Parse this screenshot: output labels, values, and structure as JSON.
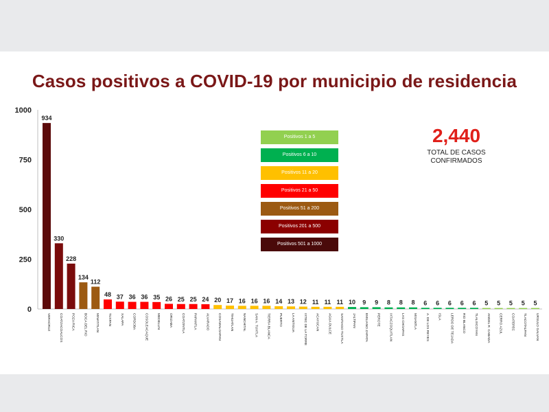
{
  "page": {
    "title": "Casos positivos a COVID-19  por municipio de residencia"
  },
  "total": {
    "value": "2,440",
    "label_line1": "TOTAL DE CASOS",
    "label_line2": "CONFIRMADOS"
  },
  "legend": [
    {
      "label": "Positivos 1 a 5",
      "color": "#92d050"
    },
    {
      "label": "Positivos 6 a 10",
      "color": "#00b050"
    },
    {
      "label": "Positivos 11 a 20",
      "color": "#ffc000"
    },
    {
      "label": "Positivos 21 a 50",
      "color": "#ff0000"
    },
    {
      "label": "Positivos 51 a 200",
      "color": "#9c5a12"
    },
    {
      "label": "Positivos 201 a 500",
      "color": "#8b0000"
    },
    {
      "label": "Positivos 501 a 1000",
      "color": "#4a0a0a"
    }
  ],
  "chart_data": {
    "type": "bar",
    "title": "Casos positivos a COVID-19  por municipio de residencia",
    "xlabel": "",
    "ylabel": "",
    "ylim": [
      0,
      1000
    ],
    "yticks": [
      0,
      250,
      500,
      750,
      1000
    ],
    "grid": false,
    "legend_position": "top-center",
    "categories": [
      "VERACRUZ",
      "COATZACOALCOS",
      "POZA RICA",
      "BOCA DEL RIO",
      "MINATITLAN",
      "TUXPAN",
      "XALAPA",
      "CORDOBA",
      "COSOLEACAQUE",
      "MEDELLIN",
      "ORIZABA",
      "COATZINTLA",
      "PAPANTLA",
      "ALVARADO",
      "COSAMALOAPAN",
      "TIHUATLAN",
      "NANCHITAL",
      "SAN A. TUXTLA",
      "TIERRA BLANCA",
      "PUERTO",
      "LA ANTIGUA",
      "IXTEC DE LA TORRE",
      "ACAYUCAN",
      "AGUA DULCE",
      "SANTIAGO TUXTLA",
      "JALTIPAN",
      "EMILIANO ZAPATA",
      "PEROTE",
      "IXTACZOQUITLAN",
      "LAS CHOAPAS",
      "MISANTLA",
      "A. DE LOS REYES",
      "ISLA",
      "LERDO DE TEJADA",
      "RIO BLANCO",
      "TLALIXCOYAN",
      "ANGEL R. CABADA",
      "CERRO AZUL",
      "COATEPEC",
      "TLACOTALPAN",
      "URSULO GALVAN"
    ],
    "values": [
      934,
      330,
      228,
      134,
      112,
      48,
      37,
      36,
      36,
      35,
      26,
      25,
      25,
      24,
      20,
      17,
      16,
      16,
      16,
      14,
      13,
      12,
      11,
      11,
      11,
      10,
      9,
      9,
      8,
      8,
      8,
      6,
      6,
      6,
      6,
      6,
      5,
      5,
      5,
      5,
      5
    ],
    "value_labels": [
      "934",
      "330",
      "228",
      "134",
      "112",
      "48",
      "37",
      "36",
      "36",
      "35",
      "26",
      "25",
      "25",
      "24",
      "20",
      "17",
      "16",
      "16",
      "16",
      "14",
      "13",
      "12",
      "11",
      "11",
      "11",
      "10",
      "9",
      "9",
      "8",
      "8",
      "8",
      "6",
      "6",
      "6",
      "6",
      "6",
      "5",
      "5",
      "5",
      "5",
      "5"
    ],
    "bar_colors": [
      "#5c0a0a",
      "#7a0c0c",
      "#7a0c0c",
      "#9c5a12",
      "#9c5a12",
      "#ff0000",
      "#ff0000",
      "#ff0000",
      "#ff0000",
      "#ff0000",
      "#ff0000",
      "#ff0000",
      "#ff0000",
      "#ff0000",
      "#ffc000",
      "#ffc000",
      "#ffc000",
      "#ffc000",
      "#ffc000",
      "#ffc000",
      "#ffc000",
      "#ffc000",
      "#ffc000",
      "#ffc000",
      "#ffc000",
      "#00b050",
      "#00b050",
      "#00b050",
      "#00b050",
      "#00b050",
      "#00b050",
      "#00b050",
      "#00b050",
      "#00b050",
      "#00b050",
      "#00b050",
      "#92d050",
      "#92d050",
      "#92d050",
      "#92d050",
      "#92d050"
    ]
  }
}
